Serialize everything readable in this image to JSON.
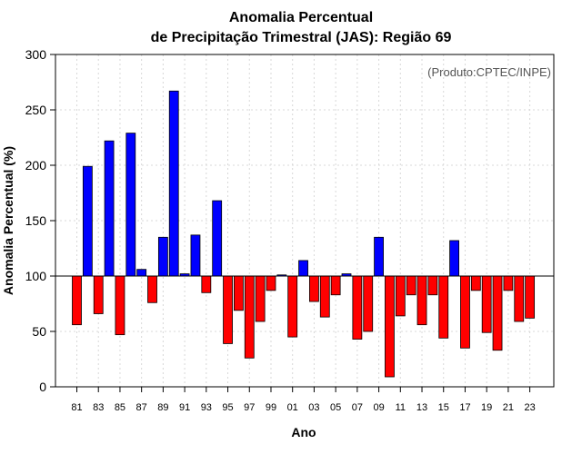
{
  "chart_data": {
    "type": "bar",
    "title_line1": "Anomalia Percentual",
    "title_line2": "de Precipitação Trimestral (JAS): Região 69",
    "xlabel": "Ano",
    "ylabel": "Anomalia Percentual (%)",
    "credit": "(Produto:CPTEC/INPE)",
    "baseline": 100,
    "ylim": [
      0,
      300
    ],
    "yticks": [
      "0",
      "50",
      "100",
      "150",
      "200",
      "250",
      "300"
    ],
    "categories": [
      "81",
      "82",
      "83",
      "84",
      "85",
      "86",
      "87",
      "88",
      "89",
      "90",
      "91",
      "92",
      "93",
      "94",
      "95",
      "96",
      "97",
      "98",
      "99",
      "00",
      "01",
      "02",
      "03",
      "04",
      "05",
      "06",
      "07",
      "08",
      "09",
      "10",
      "11",
      "12",
      "13",
      "14",
      "15",
      "16",
      "17",
      "18",
      "19",
      "20",
      "21",
      "22",
      "23"
    ],
    "xtick_labels": [
      "81",
      "83",
      "85",
      "87",
      "89",
      "91",
      "93",
      "95",
      "97",
      "99",
      "01",
      "03",
      "05",
      "07",
      "09",
      "11",
      "13",
      "15",
      "17",
      "19",
      "21",
      "23"
    ],
    "values": [
      56,
      199,
      66,
      222,
      47,
      229,
      106,
      76,
      135,
      267,
      102,
      137,
      85,
      168,
      39,
      69,
      26,
      59,
      87,
      101,
      45,
      114,
      77,
      63,
      83,
      102,
      43,
      50,
      135,
      9,
      64,
      83,
      56,
      83,
      44,
      132,
      35,
      87,
      49,
      33,
      87,
      59,
      62
    ],
    "colors": {
      "above": "#0000ff",
      "below": "#ff0000",
      "outline": "#000000",
      "grid": "#d8d8d8"
    },
    "grid": true
  }
}
